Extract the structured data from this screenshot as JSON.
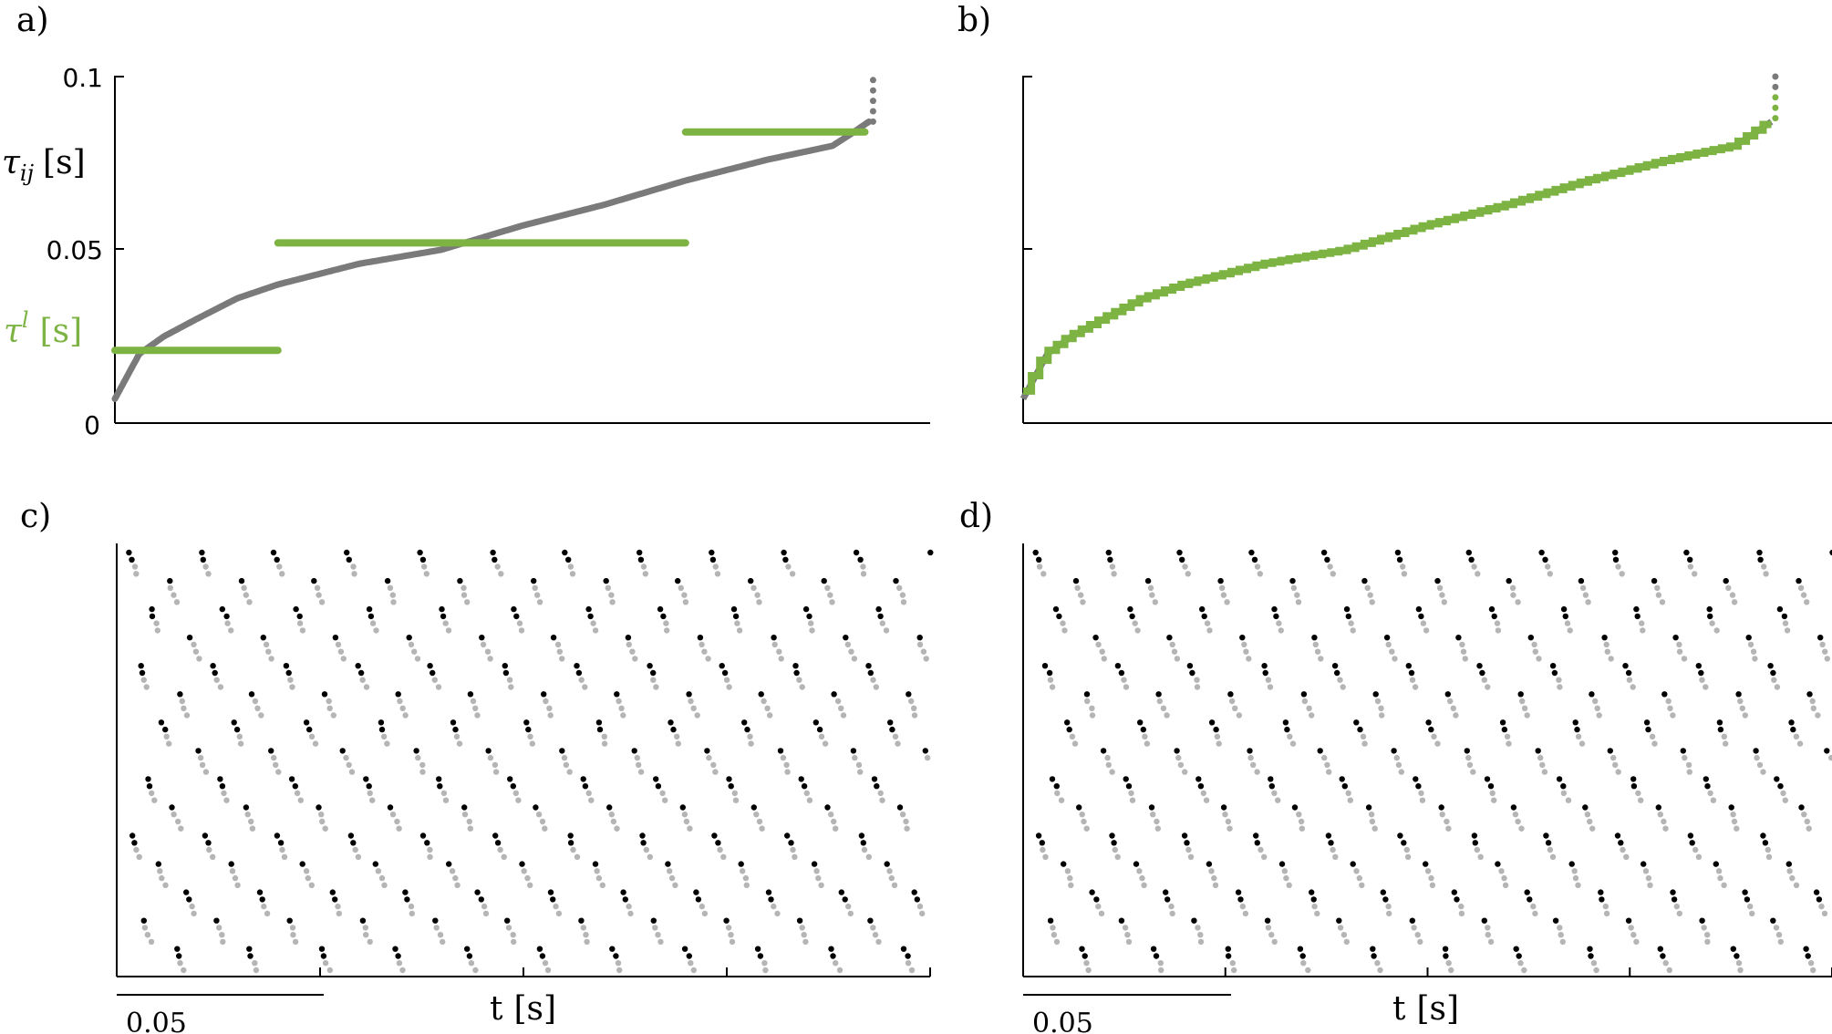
{
  "colors": {
    "gray": "#7a7a7a",
    "green": "#7cb342",
    "light_gray": "#b5b5b5",
    "black": "#000000"
  },
  "chart_data": [
    {
      "panel_label": "a)",
      "type": "scatter",
      "ylim": [
        0,
        0.1
      ],
      "yticks": [
        "0",
        "0.05",
        "0.1"
      ],
      "ylabel_sym": "τ",
      "ylabel_sub": "ij",
      "ylabel_unit": "[s]",
      "y2label_sym": "τ",
      "y2label_sup": "l",
      "y2label_unit": "[s]",
      "series": [
        {
          "sorted_curve_points": [
            [
              0,
              0.007
            ],
            [
              0.03,
              0.02
            ],
            [
              0.06,
              0.025
            ],
            [
              0.1,
              0.03
            ],
            [
              0.15,
              0.036
            ],
            [
              0.2,
              0.04
            ],
            [
              0.3,
              0.046
            ],
            [
              0.4,
              0.05
            ],
            [
              0.5,
              0.057
            ],
            [
              0.6,
              0.063
            ],
            [
              0.7,
              0.07
            ],
            [
              0.8,
              0.076
            ],
            [
              0.88,
              0.08
            ],
            [
              0.9,
              0.083
            ],
            [
              0.925,
              0.087
            ],
            [
              0.93,
              0.1
            ]
          ]
        },
        {
          "levels": [
            {
              "x0": 0.0,
              "x1": 0.2,
              "y": 0.021
            },
            {
              "x0": 0.2,
              "x1": 0.7,
              "y": 0.052
            },
            {
              "x0": 0.7,
              "x1": 0.92,
              "y": 0.084
            }
          ]
        }
      ]
    },
    {
      "panel_label": "b)",
      "type": "scatter",
      "ylim": [
        0,
        0.1
      ],
      "curve_points": [
        [
          0,
          0.007
        ],
        [
          0.03,
          0.02
        ],
        [
          0.06,
          0.025
        ],
        [
          0.1,
          0.03
        ],
        [
          0.15,
          0.036
        ],
        [
          0.2,
          0.04
        ],
        [
          0.3,
          0.046
        ],
        [
          0.4,
          0.05
        ],
        [
          0.5,
          0.057
        ],
        [
          0.6,
          0.063
        ],
        [
          0.7,
          0.07
        ],
        [
          0.8,
          0.076
        ],
        [
          0.88,
          0.08
        ],
        [
          0.9,
          0.083
        ],
        [
          0.925,
          0.087
        ],
        [
          0.93,
          0.1
        ]
      ],
      "step_count": 90
    },
    {
      "panel_label": "c)",
      "type": "scatter",
      "xlabel_sym": "t",
      "xlabel_unit": "[s]",
      "scale_bar": "0.05",
      "period": 0.0179,
      "x_start": 0.003,
      "xlim": [
        0,
        0.2
      ],
      "rows": 60
    },
    {
      "panel_label": "d)",
      "type": "scatter",
      "xlabel_sym": "t",
      "xlabel_unit": "[s]",
      "scale_bar": "0.05",
      "period": 0.0179,
      "x_start": 0.003,
      "xlim": [
        0,
        0.2
      ],
      "rows": 60
    }
  ]
}
